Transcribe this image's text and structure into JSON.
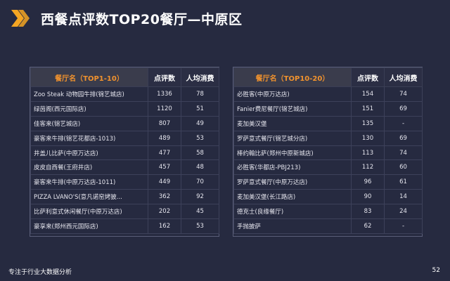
{
  "title": "西餐点评数TOP20餐厅—中原区",
  "accent_color": "#f5a623",
  "left_table": {
    "headers": [
      "餐厅名（TOP1-10）",
      "点评数",
      "人均消费"
    ],
    "rows": [
      [
        "Zoo Steak 动物园牛排(锦艺城店)",
        "1336",
        "78"
      ],
      [
        "绿茵阁(西元国际店)",
        "1120",
        "51"
      ],
      [
        "佳客来(锦艺城店)",
        "807",
        "49"
      ],
      [
        "豪客来牛排(锦艺花都店-1013)",
        "489",
        "53"
      ],
      [
        "井盖儿比萨(中原万达店)",
        "477",
        "58"
      ],
      [
        "皮皮自西餐(王府井店)",
        "457",
        "48"
      ],
      [
        "豪客来牛排(中原万达店-1011)",
        "449",
        "70"
      ],
      [
        "PIZZA LVANO'S(意凡诺窑烤披...",
        "362",
        "92"
      ],
      [
        "比萨利意式休闲餐厅(中原万达店)",
        "202",
        "45"
      ],
      [
        "豪享来(郑州西元国际店)",
        "162",
        "53"
      ]
    ]
  },
  "right_table": {
    "headers": [
      "餐厅名（TOP10-20）",
      "点评数",
      "人均消费"
    ],
    "rows": [
      [
        "必胜客(中原万达店)",
        "154",
        "74"
      ],
      [
        "Fanier费尼餐厅(锦艺城店)",
        "151",
        "69"
      ],
      [
        "麦加美汉堡",
        "135",
        "-"
      ],
      [
        "罗萨意式餐厅(锦艺城分店)",
        "130",
        "69"
      ],
      [
        "棒约翰比萨(郑州中原新城店)",
        "113",
        "74"
      ],
      [
        "必胜客(华都店-PBJ213)",
        "112",
        "60"
      ],
      [
        "罗萨意式餐厅(中原万达店)",
        "96",
        "61"
      ],
      [
        "麦加美汉堡(长江路店)",
        "90",
        "14"
      ],
      [
        "德克士(良缘餐厅)",
        "83",
        "24"
      ],
      [
        "手抛披萨",
        "62",
        "-"
      ]
    ]
  },
  "footer": {
    "tagline": "专注于行业大数据分析",
    "page_number": "52"
  }
}
